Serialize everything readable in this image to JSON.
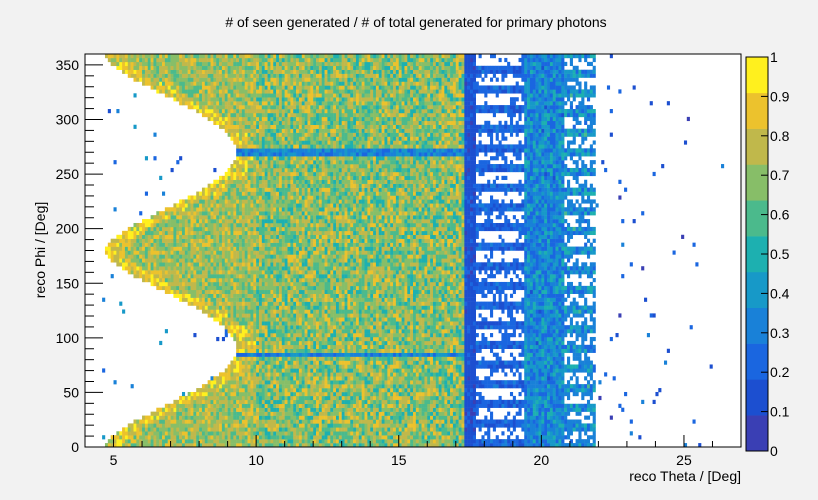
{
  "chart_data": {
    "type": "heatmap",
    "title": "# of seen generated / # of total generated for primary photons",
    "xlabel": "reco Theta / [Deg]",
    "ylabel": "reco Phi / [Deg]",
    "xlim": [
      4,
      27
    ],
    "ylim": [
      0,
      360
    ],
    "x_ticks": [
      5,
      10,
      15,
      20,
      25
    ],
    "y_ticks": [
      0,
      50,
      100,
      150,
      200,
      250,
      300,
      350
    ],
    "zlim": [
      0,
      1
    ],
    "z_ticks": [
      0,
      0.1,
      0.2,
      0.3,
      0.4,
      0.5,
      0.6,
      0.7,
      0.8,
      0.9,
      1
    ],
    "z_tick_labels": [
      "0",
      "0.1",
      "0.2",
      "0.3",
      "0.4",
      "0.5",
      "0.6",
      "0.7",
      "0.8",
      "0.9",
      "1"
    ],
    "colormap": [
      "#3a3fb4",
      "#1c4fd0",
      "#1a66e0",
      "#1981d8",
      "#1799c8",
      "#1db0b0",
      "#4bba8c",
      "#87be68",
      "#c0b84b",
      "#ecc22d",
      "#fff01e"
    ],
    "approx_regions": [
      {
        "theta_range": [
          4.5,
          10.0
        ],
        "phi_range": [
          0,
          360
        ],
        "mean_value": 0.8,
        "note": "lobed acceptance edge"
      },
      {
        "theta_range": [
          10.0,
          17.3
        ],
        "phi_range": [
          0,
          360
        ],
        "mean_value": 0.7
      },
      {
        "theta_range": [
          17.3,
          17.7
        ],
        "phi_range": [
          0,
          360
        ],
        "mean_value": 0.15
      },
      {
        "theta_range": [
          17.7,
          19.4
        ],
        "phi_range": [
          0,
          360
        ],
        "mean_value": 0.2,
        "note": "striped"
      },
      {
        "theta_range": [
          19.4,
          20.8
        ],
        "phi_range": [
          0,
          360
        ],
        "mean_value": 0.3
      },
      {
        "theta_range": [
          20.8,
          21.9
        ],
        "phi_range": [
          0,
          360
        ],
        "mean_value": 0.35,
        "note": "striped"
      },
      {
        "theta_range": [
          21.9,
          27.0
        ],
        "phi_range": [
          0,
          360
        ],
        "mean_value": 0.1,
        "note": "sparse"
      }
    ],
    "low_bands_phi": [
      85,
      270
    ]
  }
}
